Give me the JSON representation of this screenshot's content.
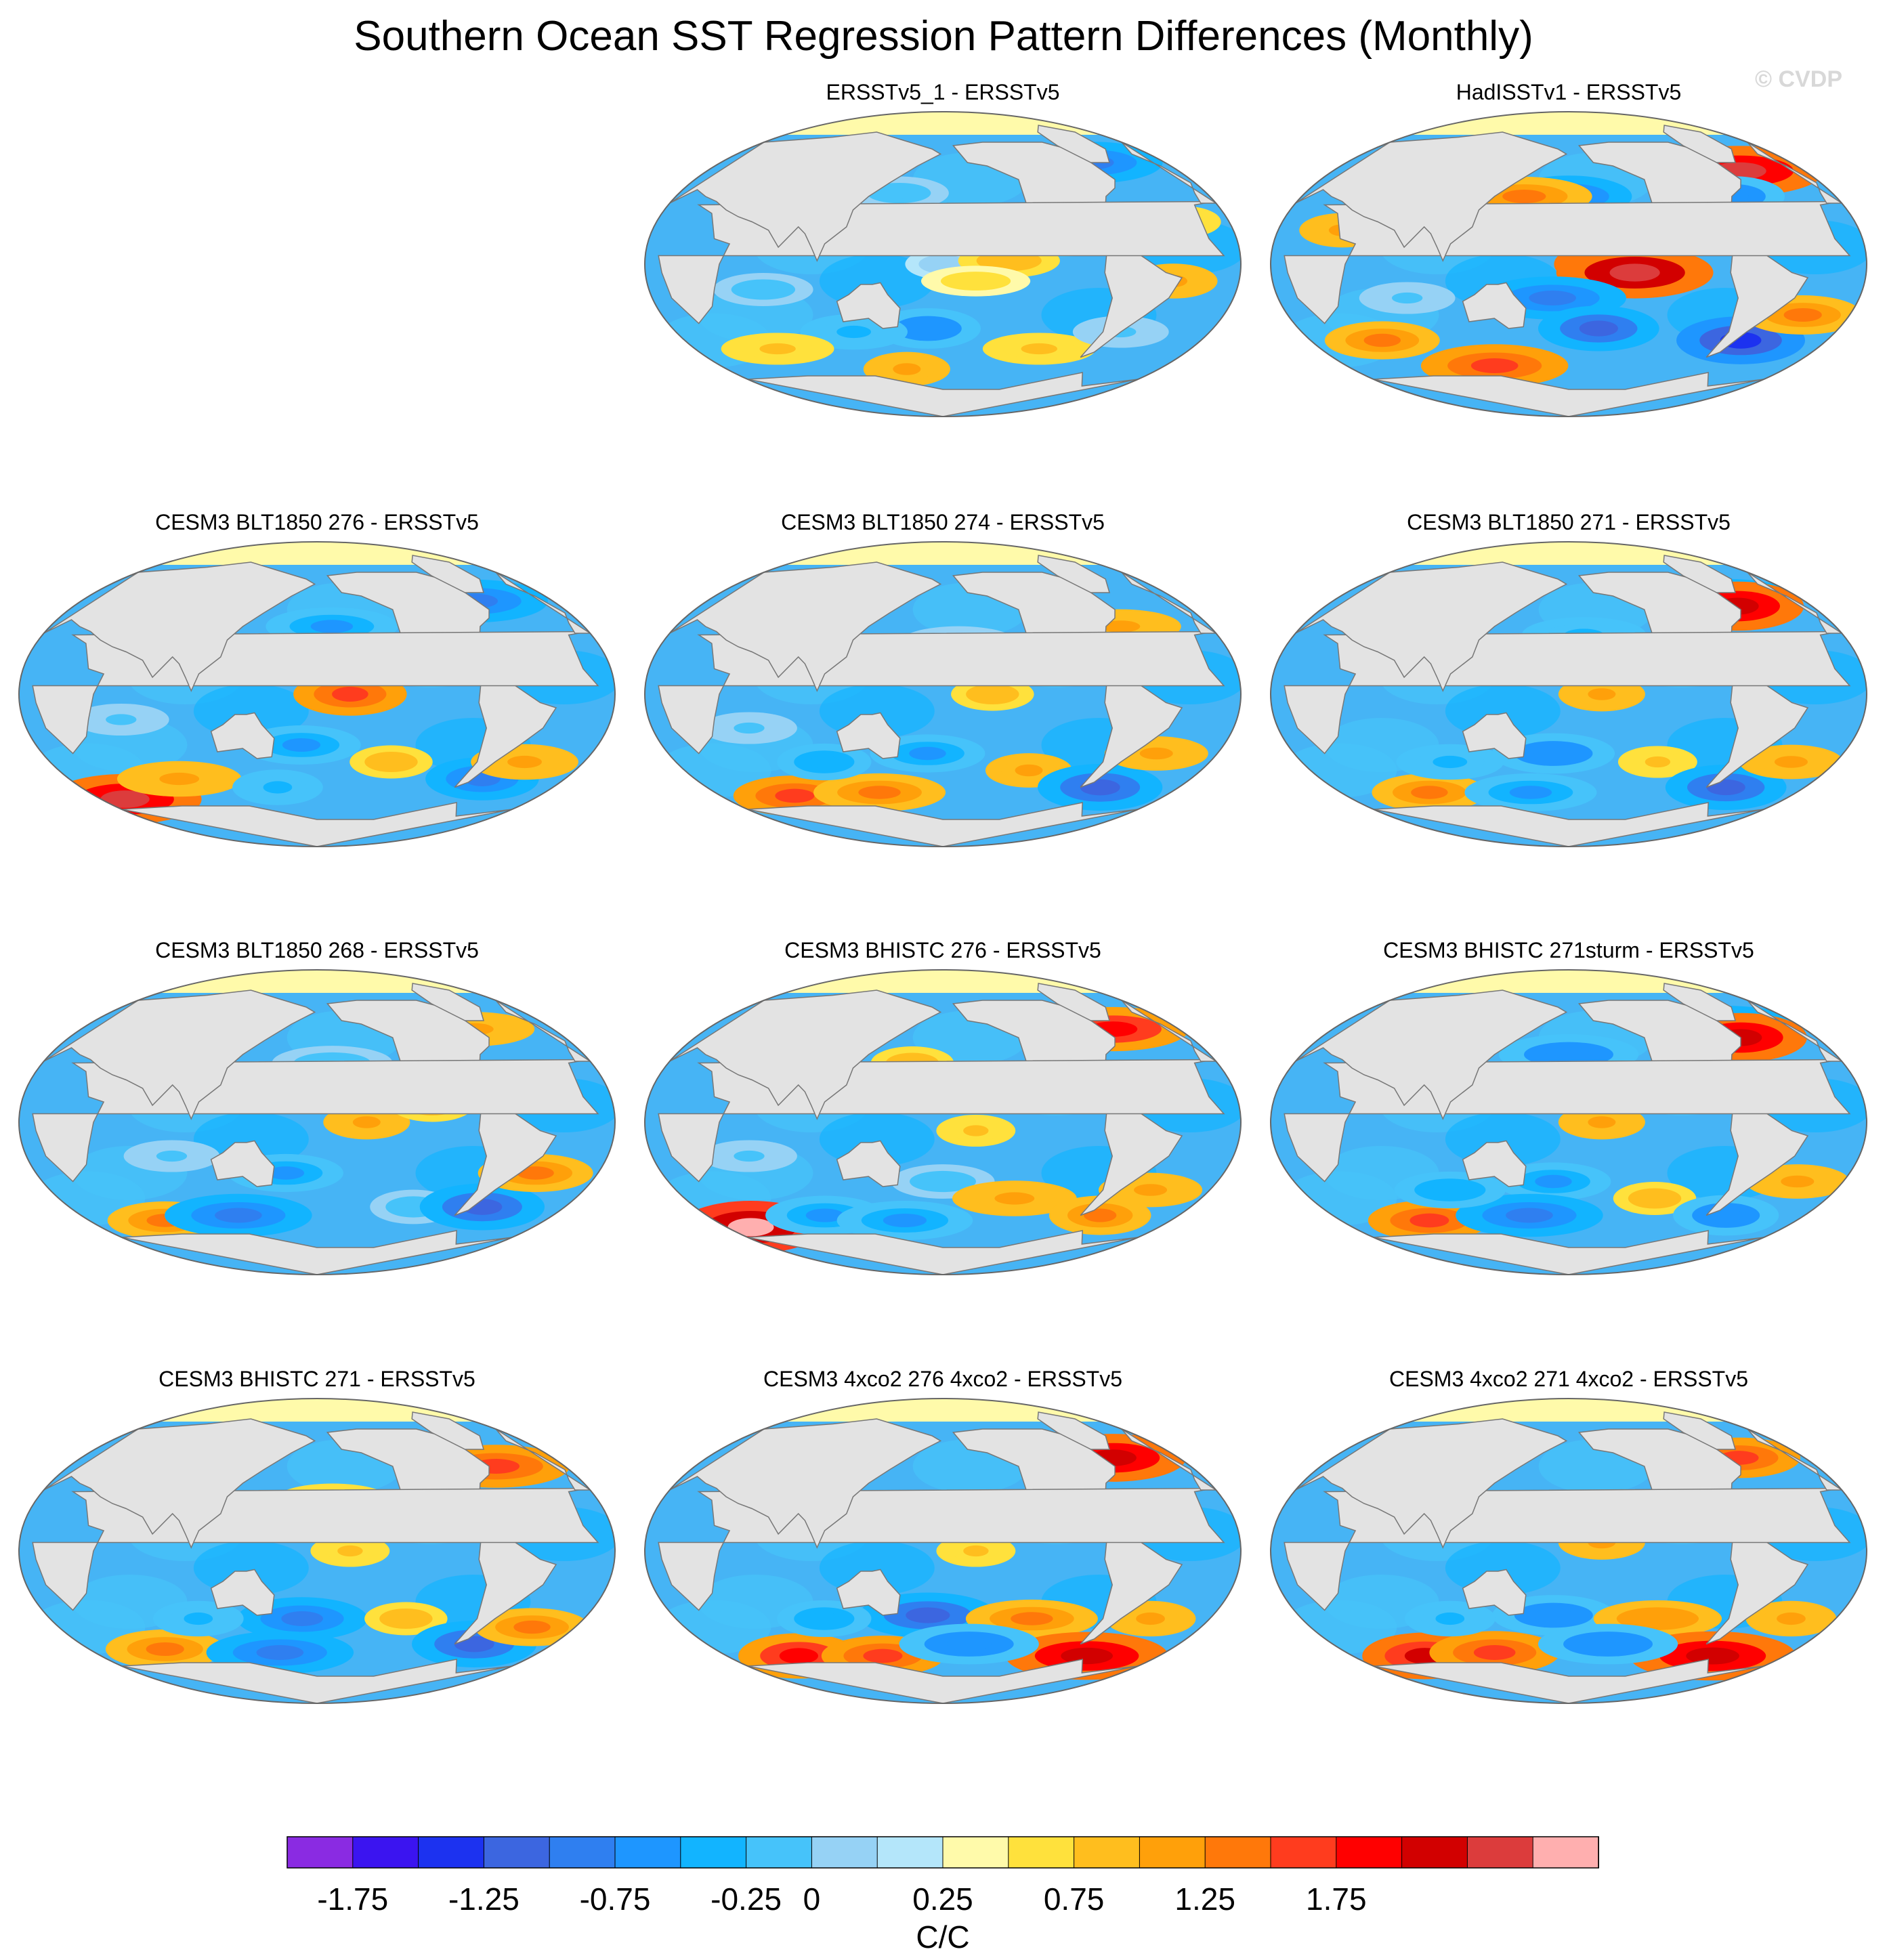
{
  "title": "Southern Ocean SST Regression Pattern Differences (Monthly)",
  "watermark": "© CVDP",
  "colorbar": {
    "units": "C/C",
    "tick_labels": [
      "-1.75",
      "-1.25",
      "-0.75",
      "-0.25",
      "0",
      "0.25",
      "0.75",
      "1.25",
      "1.75"
    ],
    "colors": [
      "#8a2be2",
      "#3b14f0",
      "#1c32f0",
      "#3c66e0",
      "#2f7ff0",
      "#1e96ff",
      "#12b4ff",
      "#46c3fa",
      "#96d2f5",
      "#b4e6fa",
      "#fffaaa",
      "#ffe13c",
      "#ffbe1e",
      "#ffa00a",
      "#ff780a",
      "#ff3c1e",
      "#ff0000",
      "#d20000",
      "#dc3c3c",
      "#ffafaf"
    ]
  },
  "chart_data": {
    "type": "heatmap",
    "title": "Southern Ocean SST Regression Pattern Differences (Monthly)",
    "projection": "Robinson (Pacific-centered)",
    "units": "C/C",
    "color_levels": [
      -2.0,
      -1.75,
      -1.5,
      -1.25,
      -1.0,
      -0.75,
      -0.5,
      -0.25,
      -0.125,
      0,
      0.125,
      0.25,
      0.5,
      0.75,
      1.0,
      1.25,
      1.5,
      1.75,
      2.0
    ],
    "panels": [
      {
        "title": "ERSSTv5_1 - ERSSTv5",
        "features": [
          [
            180,
            0,
            -0.2
          ],
          [
            220,
            2,
            0.45
          ],
          [
            200,
            -10,
            0.2
          ],
          [
            170,
            -38,
            -1.0
          ],
          [
            120,
            -40,
            -0.6
          ],
          [
            250,
            -50,
            0.3
          ],
          [
            320,
            -10,
            0.55
          ],
          [
            300,
            -40,
            -0.3
          ],
          [
            60,
            -50,
            0.3
          ],
          [
            150,
            -62,
            0.5
          ],
          [
            150,
            42,
            -0.4
          ],
          [
            300,
            60,
            -1.1
          ],
          [
            330,
            25,
            0.3
          ],
          [
            70,
            -15,
            -0.4
          ]
        ]
      },
      {
        "title": "HadISSTv1 - ERSSTv5",
        "features": [
          [
            210,
            0,
            1.6
          ],
          [
            220,
            -5,
            1.9
          ],
          [
            170,
            -20,
            -1.2
          ],
          [
            200,
            -38,
            -1.4
          ],
          [
            180,
            40,
            -1.1
          ],
          [
            150,
            40,
            0.9
          ],
          [
            300,
            -45,
            -1.6
          ],
          [
            330,
            -30,
            0.9
          ],
          [
            310,
            55,
            1.8
          ],
          [
            290,
            40,
            -1.0
          ],
          [
            50,
            -45,
            0.8
          ],
          [
            120,
            -60,
            1.2
          ],
          [
            40,
            20,
            0.5
          ],
          [
            80,
            -20,
            -0.3
          ]
        ]
      },
      {
        "title": "CESM3 BLT1850 276 - ERSSTv5",
        "features": [
          [
            200,
            0,
            1.2
          ],
          [
            170,
            -30,
            -0.9
          ],
          [
            190,
            40,
            -0.8
          ],
          [
            230,
            -40,
            0.4
          ],
          [
            20,
            -62,
            1.8
          ],
          [
            80,
            -50,
            0.6
          ],
          [
            300,
            -50,
            -1.2
          ],
          [
            320,
            -40,
            0.6
          ],
          [
            300,
            55,
            -1.2
          ],
          [
            150,
            -55,
            -0.6
          ],
          [
            60,
            -15,
            -0.3
          ]
        ]
      },
      {
        "title": "CESM3 BLT1850 274 - ERSSTv5",
        "features": [
          [
            210,
            0,
            0.4
          ],
          [
            170,
            -35,
            -0.8
          ],
          [
            190,
            30,
            -0.5
          ],
          [
            240,
            -45,
            0.5
          ],
          [
            60,
            -60,
            1.0
          ],
          [
            130,
            -58,
            0.8
          ],
          [
            300,
            -55,
            -1.5
          ],
          [
            320,
            -35,
            0.5
          ],
          [
            300,
            40,
            0.5
          ],
          [
            100,
            -40,
            -0.7
          ],
          [
            60,
            -20,
            -0.3
          ]
        ]
      },
      {
        "title": "CESM3 BLT1850 271 - ERSSTv5",
        "features": [
          [
            200,
            0,
            0.5
          ],
          [
            170,
            -35,
            -1.0
          ],
          [
            190,
            35,
            -0.6
          ],
          [
            240,
            -40,
            0.3
          ],
          [
            70,
            -58,
            0.8
          ],
          [
            150,
            -58,
            -0.8
          ],
          [
            300,
            -55,
            -1.4
          ],
          [
            330,
            -40,
            0.5
          ],
          [
            300,
            55,
            -1.3
          ],
          [
            305,
            52,
            1.7
          ],
          [
            100,
            -40,
            -0.6
          ]
        ]
      },
      {
        "title": "CESM3 BLT1850 268 - ERSSTv5",
        "features": [
          [
            210,
            0,
            0.5
          ],
          [
            160,
            -30,
            -0.8
          ],
          [
            190,
            35,
            -0.5
          ],
          [
            250,
            -50,
            -0.5
          ],
          [
            60,
            -58,
            0.8
          ],
          [
            120,
            -55,
            -1.2
          ],
          [
            300,
            -50,
            -1.5
          ],
          [
            320,
            -30,
            0.8
          ],
          [
            300,
            55,
            0.5
          ],
          [
            250,
            10,
            0.4
          ],
          [
            90,
            -20,
            -0.3
          ]
        ]
      },
      {
        "title": "CESM3 BHISTC 276 - ERSSTv5",
        "features": [
          [
            200,
            -5,
            0.3
          ],
          [
            180,
            -35,
            -0.5
          ],
          [
            230,
            -45,
            0.6
          ],
          [
            20,
            -62,
            2.1
          ],
          [
            90,
            -55,
            -0.9
          ],
          [
            150,
            -58,
            -0.9
          ],
          [
            300,
            -55,
            0.9
          ],
          [
            320,
            -40,
            0.5
          ],
          [
            310,
            55,
            1.3
          ],
          [
            160,
            35,
            0.4
          ],
          [
            60,
            -20,
            -0.3
          ]
        ]
      },
      {
        "title": "CESM3 BHISTC 271sturm - ERSSTv5",
        "features": [
          [
            200,
            0,
            0.5
          ],
          [
            170,
            -35,
            -0.8
          ],
          [
            180,
            40,
            -1.0
          ],
          [
            240,
            -45,
            0.4
          ],
          [
            70,
            -58,
            1.0
          ],
          [
            150,
            -55,
            -1.2
          ],
          [
            300,
            -55,
            -1.0
          ],
          [
            330,
            -35,
            0.5
          ],
          [
            300,
            55,
            -1.5
          ],
          [
            305,
            50,
            1.7
          ],
          [
            100,
            -40,
            -0.7
          ]
        ]
      },
      {
        "title": "CESM3 BHISTC 271 - ERSSTv5",
        "features": [
          [
            200,
            0,
            0.3
          ],
          [
            170,
            -40,
            -1.2
          ],
          [
            190,
            30,
            0.4
          ],
          [
            240,
            -40,
            0.4
          ],
          [
            60,
            -58,
            0.9
          ],
          [
            150,
            -60,
            -1.2
          ],
          [
            300,
            -55,
            -1.5
          ],
          [
            330,
            -45,
            0.8
          ],
          [
            310,
            50,
            1.2
          ],
          [
            100,
            -40,
            -0.6
          ]
        ]
      },
      {
        "title": "CESM3 4xco2 276 4xco2 - ERSSTv5",
        "features": [
          [
            200,
            0,
            0.3
          ],
          [
            170,
            -38,
            -1.4
          ],
          [
            240,
            -40,
            0.8
          ],
          [
            60,
            -62,
            1.4
          ],
          [
            130,
            -62,
            1.0
          ],
          [
            300,
            -62,
            1.6
          ],
          [
            320,
            -40,
            0.6
          ],
          [
            310,
            55,
            1.6
          ],
          [
            200,
            -55,
            -1.0
          ],
          [
            100,
            -40,
            -0.7
          ]
        ]
      },
      {
        "title": "CESM3 4xco2 271 4xco2 - ERSSTv5",
        "features": [
          [
            200,
            5,
            0.5
          ],
          [
            170,
            -38,
            -1.0
          ],
          [
            240,
            -40,
            0.7
          ],
          [
            60,
            -62,
            1.5
          ],
          [
            120,
            -60,
            1.2
          ],
          [
            300,
            -62,
            1.7
          ],
          [
            330,
            -40,
            0.6
          ],
          [
            310,
            55,
            1.0
          ],
          [
            210,
            -55,
            -1.0
          ],
          [
            100,
            -40,
            -0.6
          ]
        ]
      }
    ]
  }
}
